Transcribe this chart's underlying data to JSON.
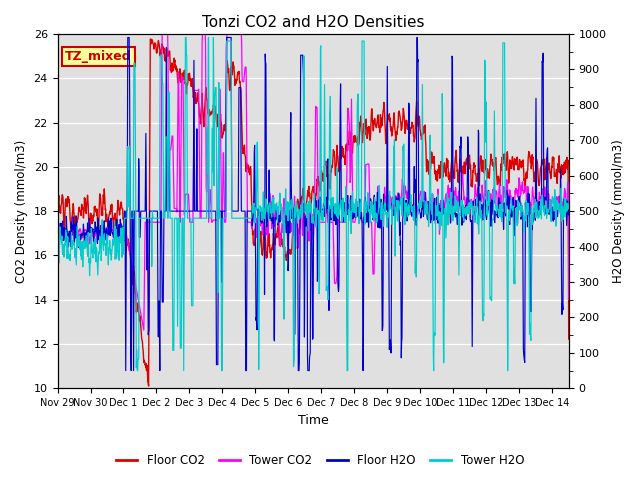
{
  "title": "Tonzi CO2 and H2O Densities",
  "xlabel": "Time",
  "ylabel_left": "CO2 Density (mmol/m3)",
  "ylabel_right": "H2O Density (mmol/m3)",
  "ylim_left": [
    10,
    26
  ],
  "ylim_right": [
    0,
    1000
  ],
  "yticks_left": [
    10,
    12,
    14,
    16,
    18,
    20,
    22,
    24,
    26
  ],
  "yticks_right": [
    0,
    100,
    200,
    300,
    400,
    500,
    600,
    700,
    800,
    900,
    1000
  ],
  "annotation_text": "TZ_mixed",
  "annotation_color": "#cc0000",
  "annotation_bg": "#ffff99",
  "colors": {
    "floor_co2": "#dd0000",
    "tower_co2": "#ff00ff",
    "floor_h2o": "#0000cc",
    "tower_h2o": "#00cccc"
  },
  "legend_labels": [
    "Floor CO2",
    "Tower CO2",
    "Floor H2O",
    "Tower H2O"
  ],
  "bg_color": "#e0e0e0",
  "fig_bg": "#ffffff",
  "num_days": 15.5,
  "tick_positions": [
    0,
    1,
    2,
    3,
    4,
    5,
    6,
    7,
    8,
    9,
    10,
    11,
    12,
    13,
    14,
    15
  ],
  "tick_labels": [
    "Nov 29",
    "Nov 30",
    "Dec 1",
    "Dec 2",
    "Dec 3",
    "Dec 4",
    "Dec 5",
    "Dec 6",
    "Dec 7",
    "Dec 8",
    "Dec 9",
    "Dec 10",
    "Dec 11",
    "Dec 12",
    "Dec 13",
    "Dec 14"
  ]
}
